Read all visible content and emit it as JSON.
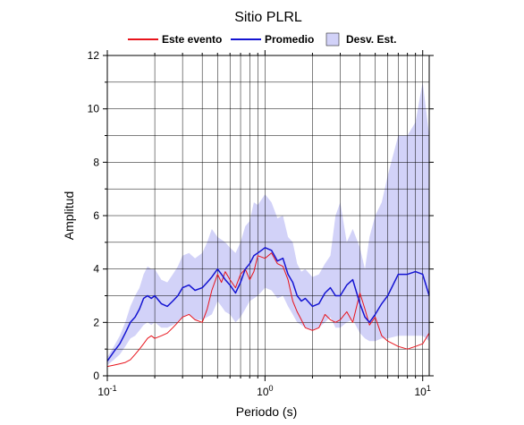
{
  "chart_data": {
    "type": "line",
    "title": "Sitio PLRL",
    "xlabel": "Periodo (s)",
    "ylabel": "Amplitud",
    "xscale": "log",
    "xlim": [
      0.1,
      11
    ],
    "ylim": [
      0,
      12
    ],
    "y_ticks": [
      0,
      2,
      4,
      6,
      8,
      10,
      12
    ],
    "y_tick_labels": [
      "0",
      "2",
      "4",
      "6",
      "8",
      "10",
      "12"
    ],
    "x_ticks": [
      {
        "value": 0.1,
        "base": "10",
        "exp": "-1"
      },
      {
        "value": 1,
        "base": "10",
        "exp": "0"
      },
      {
        "value": 10,
        "base": "10",
        "exp": "1"
      }
    ],
    "grid": true,
    "legend_position": "top",
    "legend": [
      {
        "label": "Este evento",
        "color": "#e8141c",
        "kind": "line"
      },
      {
        "label": "Promedio",
        "color": "#1414d2",
        "kind": "line"
      },
      {
        "label": "Desv. Est.",
        "color": "#d2d2f8",
        "kind": "area"
      }
    ],
    "series": [
      {
        "name": "Este evento",
        "color": "#e8141c",
        "x": [
          0.1,
          0.11,
          0.12,
          0.13,
          0.14,
          0.15,
          0.16,
          0.17,
          0.18,
          0.19,
          0.2,
          0.22,
          0.24,
          0.26,
          0.28,
          0.3,
          0.33,
          0.36,
          0.4,
          0.43,
          0.46,
          0.5,
          0.53,
          0.56,
          0.6,
          0.65,
          0.7,
          0.75,
          0.8,
          0.85,
          0.9,
          1.0,
          1.1,
          1.2,
          1.3,
          1.4,
          1.5,
          1.6,
          1.7,
          1.8,
          2.0,
          2.2,
          2.4,
          2.6,
          2.8,
          3.0,
          3.3,
          3.6,
          4.0,
          4.3,
          4.6,
          5.0,
          5.5,
          6.0,
          7.0,
          8.0,
          9.0,
          10.0,
          11.0
        ],
        "y": [
          0.35,
          0.4,
          0.45,
          0.5,
          0.6,
          0.8,
          1.0,
          1.2,
          1.4,
          1.5,
          1.4,
          1.5,
          1.6,
          1.8,
          2.0,
          2.2,
          2.3,
          2.1,
          2.0,
          2.5,
          3.2,
          3.8,
          3.5,
          3.9,
          3.6,
          3.3,
          3.8,
          4.0,
          3.6,
          3.9,
          4.5,
          4.4,
          4.6,
          4.2,
          4.1,
          3.6,
          2.8,
          2.4,
          2.1,
          1.8,
          1.7,
          1.8,
          2.3,
          2.1,
          2.0,
          2.1,
          2.4,
          2.0,
          3.1,
          2.5,
          1.9,
          2.2,
          1.5,
          1.3,
          1.1,
          1.0,
          1.1,
          1.2,
          1.6
        ]
      },
      {
        "name": "Promedio",
        "color": "#1414d2",
        "x": [
          0.1,
          0.11,
          0.12,
          0.13,
          0.14,
          0.15,
          0.16,
          0.17,
          0.18,
          0.19,
          0.2,
          0.22,
          0.24,
          0.26,
          0.28,
          0.3,
          0.33,
          0.36,
          0.4,
          0.43,
          0.46,
          0.5,
          0.53,
          0.56,
          0.6,
          0.65,
          0.7,
          0.75,
          0.8,
          0.85,
          0.9,
          1.0,
          1.1,
          1.2,
          1.3,
          1.4,
          1.5,
          1.6,
          1.7,
          1.8,
          2.0,
          2.2,
          2.4,
          2.6,
          2.8,
          3.0,
          3.3,
          3.6,
          4.0,
          4.3,
          4.6,
          5.0,
          5.5,
          6.0,
          7.0,
          8.0,
          9.0,
          10.0,
          11.0
        ],
        "y": [
          0.55,
          0.9,
          1.2,
          1.6,
          2.0,
          2.2,
          2.5,
          2.9,
          3.0,
          2.9,
          3.0,
          2.7,
          2.6,
          2.8,
          3.0,
          3.3,
          3.4,
          3.2,
          3.3,
          3.5,
          3.7,
          4.0,
          3.8,
          3.6,
          3.4,
          3.1,
          3.5,
          4.0,
          4.2,
          4.5,
          4.6,
          4.8,
          4.7,
          4.3,
          4.4,
          3.8,
          3.5,
          3.0,
          2.8,
          2.9,
          2.6,
          2.7,
          3.1,
          3.3,
          3.0,
          3.0,
          3.4,
          3.6,
          2.7,
          2.2,
          2.0,
          2.3,
          2.7,
          3.0,
          3.8,
          3.8,
          3.9,
          3.8,
          3.0
        ]
      }
    ],
    "band": {
      "name": "Desv. Est.",
      "color": "#d2d2f8",
      "x": [
        0.1,
        0.11,
        0.12,
        0.13,
        0.14,
        0.15,
        0.16,
        0.17,
        0.18,
        0.19,
        0.2,
        0.22,
        0.24,
        0.26,
        0.28,
        0.3,
        0.33,
        0.36,
        0.4,
        0.43,
        0.46,
        0.5,
        0.53,
        0.56,
        0.6,
        0.65,
        0.7,
        0.75,
        0.8,
        0.85,
        0.9,
        1.0,
        1.1,
        1.2,
        1.3,
        1.4,
        1.5,
        1.6,
        1.7,
        1.8,
        2.0,
        2.2,
        2.4,
        2.6,
        2.8,
        3.0,
        3.3,
        3.6,
        4.0,
        4.3,
        4.6,
        5.0,
        5.5,
        6.0,
        7.0,
        8.0,
        9.0,
        10.0,
        11.0
      ],
      "upper": [
        0.7,
        1.1,
        1.5,
        2.0,
        2.6,
        3.0,
        3.3,
        3.8,
        4.1,
        4.0,
        4.0,
        3.6,
        3.5,
        3.8,
        4.1,
        4.5,
        4.6,
        4.4,
        4.6,
        5.0,
        5.5,
        5.2,
        5.1,
        5.0,
        4.8,
        4.6,
        5.0,
        5.6,
        5.8,
        6.5,
        6.4,
        6.8,
        6.5,
        5.9,
        6.0,
        5.2,
        5.0,
        4.2,
        3.9,
        4.0,
        3.7,
        3.8,
        4.2,
        4.5,
        6.0,
        6.5,
        5.0,
        5.5,
        4.8,
        4.0,
        5.2,
        6.0,
        6.5,
        7.5,
        9.0,
        9.0,
        9.5,
        11.0,
        9.0
      ],
      "lower": [
        0.4,
        0.6,
        0.8,
        1.1,
        1.4,
        1.5,
        1.7,
        1.9,
        2.0,
        1.9,
        2.0,
        1.8,
        1.8,
        1.9,
        2.0,
        2.2,
        2.3,
        2.1,
        2.1,
        2.2,
        2.3,
        2.8,
        2.6,
        2.4,
        2.3,
        2.0,
        2.2,
        2.5,
        2.8,
        2.9,
        3.0,
        3.3,
        3.2,
        2.9,
        3.0,
        2.6,
        2.3,
        2.0,
        1.9,
        1.8,
        1.7,
        1.8,
        2.0,
        2.2,
        1.8,
        1.8,
        2.0,
        2.1,
        1.6,
        1.4,
        1.3,
        1.3,
        1.4,
        1.4,
        1.5,
        1.5,
        1.5,
        1.5,
        1.3
      ]
    }
  }
}
